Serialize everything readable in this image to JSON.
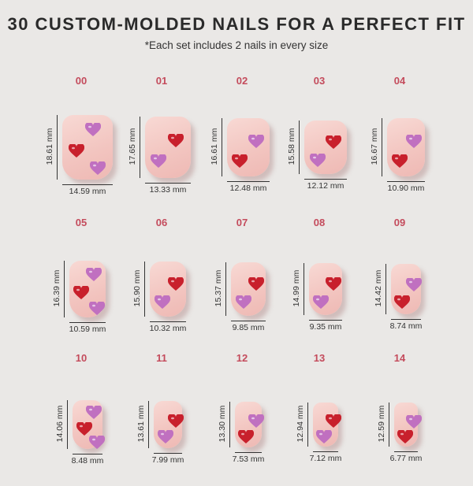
{
  "title": "30 CUSTOM-MOLDED NAILS FOR A PERFECT FIT",
  "subtitle": "*Each set includes 2 nails in every size",
  "colors": {
    "red": "#c8202c",
    "pink": "#c070c0",
    "number": "#c44b5c"
  },
  "nails": [
    {
      "size": "00",
      "height": "18.61 mm",
      "width": "14.59 mm",
      "h": 18.61,
      "w": 14.59,
      "hearts": [
        "pink",
        "red",
        "pink"
      ]
    },
    {
      "size": "01",
      "height": "17.65 mm",
      "width": "13.33 mm",
      "h": 17.65,
      "w": 13.33,
      "hearts": [
        "red",
        "pink"
      ]
    },
    {
      "size": "02",
      "height": "16.61 mm",
      "width": "12.48 mm",
      "h": 16.61,
      "w": 12.48,
      "hearts": [
        "pink",
        "red"
      ]
    },
    {
      "size": "03",
      "height": "15.58 mm",
      "width": "12.12 mm",
      "h": 15.58,
      "w": 12.12,
      "hearts": [
        "red",
        "pink"
      ]
    },
    {
      "size": "04",
      "height": "16.67 mm",
      "width": "10.90 mm",
      "h": 16.67,
      "w": 10.9,
      "hearts": [
        "pink",
        "red"
      ]
    },
    {
      "size": "05",
      "height": "16.39 mm",
      "width": "10.59 mm",
      "h": 16.39,
      "w": 10.59,
      "hearts": [
        "pink",
        "red",
        "pink"
      ]
    },
    {
      "size": "06",
      "height": "15.90 mm",
      "width": "10.32 mm",
      "h": 15.9,
      "w": 10.32,
      "hearts": [
        "red",
        "pink"
      ]
    },
    {
      "size": "07",
      "height": "15.37 mm",
      "width": "9.85 mm",
      "h": 15.37,
      "w": 9.85,
      "hearts": [
        "red",
        "pink"
      ]
    },
    {
      "size": "08",
      "height": "14.99 mm",
      "width": "9.35 mm",
      "h": 14.99,
      "w": 9.35,
      "hearts": [
        "red",
        "pink"
      ]
    },
    {
      "size": "09",
      "height": "14.42 mm",
      "width": "8.74 mm",
      "h": 14.42,
      "w": 8.74,
      "hearts": [
        "pink",
        "red"
      ]
    },
    {
      "size": "10",
      "height": "14.06 mm",
      "width": "8.48 mm",
      "h": 14.06,
      "w": 8.48,
      "hearts": [
        "pink",
        "red",
        "pink"
      ]
    },
    {
      "size": "11",
      "height": "13.61 mm",
      "width": "7.99 mm",
      "h": 13.61,
      "w": 7.99,
      "hearts": [
        "red",
        "pink"
      ]
    },
    {
      "size": "12",
      "height": "13.30 mm",
      "width": "7.53 mm",
      "h": 13.3,
      "w": 7.53,
      "hearts": [
        "pink",
        "red"
      ]
    },
    {
      "size": "13",
      "height": "12.94 mm",
      "width": "7.12 mm",
      "h": 12.94,
      "w": 7.12,
      "hearts": [
        "red",
        "pink"
      ]
    },
    {
      "size": "14",
      "height": "12.59 mm",
      "width": "6.77 mm",
      "h": 12.59,
      "w": 6.77,
      "hearts": [
        "pink",
        "red"
      ]
    }
  ]
}
